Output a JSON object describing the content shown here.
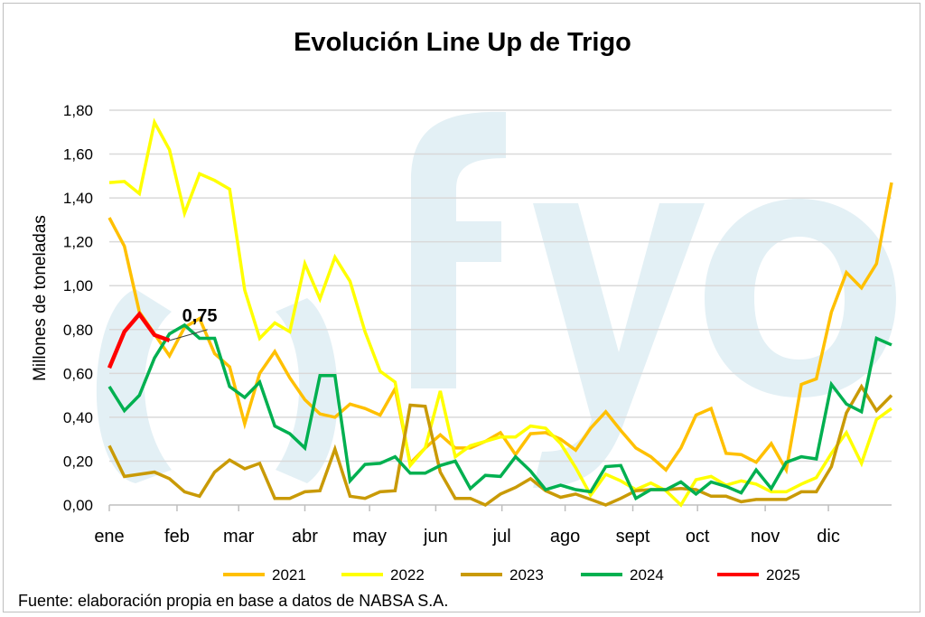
{
  "chart_data": {
    "type": "line",
    "title": "Evolución Line Up de Trigo",
    "ylabel": "Millones de toneladas",
    "xlabel": "",
    "ylim": [
      0,
      1.8
    ],
    "y_ticks": [
      "0,00",
      "0,20",
      "0,40",
      "0,60",
      "0,80",
      "1,00",
      "1,20",
      "1,40",
      "1,60",
      "1,80"
    ],
    "grid": "horizontal",
    "legend_position": "bottom",
    "x_unit": "week",
    "x_ticks": [
      {
        "label": "ene",
        "week": 1
      },
      {
        "label": "feb",
        "week": 5.5
      },
      {
        "label": "mar",
        "week": 9.6
      },
      {
        "label": "abr",
        "week": 14
      },
      {
        "label": "may",
        "week": 18.3
      },
      {
        "label": "jun",
        "week": 22.7
      },
      {
        "label": "jul",
        "week": 27.1
      },
      {
        "label": "ago",
        "week": 31.3
      },
      {
        "label": "sept",
        "week": 35.8
      },
      {
        "label": "oct",
        "week": 40.1
      },
      {
        "label": "nov",
        "week": 44.6
      },
      {
        "label": "dic",
        "week": 48.8
      }
    ],
    "series": [
      {
        "name": "2021",
        "color": "#FFC000",
        "values": [
          1.31,
          1.18,
          0.88,
          0.78,
          0.68,
          0.81,
          0.85,
          0.69,
          0.63,
          0.37,
          0.6,
          0.7,
          0.58,
          0.48,
          0.415,
          0.4,
          0.46,
          0.44,
          0.41,
          0.53,
          0.19,
          0.26,
          0.32,
          0.26,
          0.26,
          0.29,
          0.33,
          0.23,
          0.325,
          0.33,
          0.3,
          0.25,
          0.35,
          0.425,
          0.34,
          0.26,
          0.22,
          0.16,
          0.26,
          0.41,
          0.44,
          0.235,
          0.23,
          0.195,
          0.28,
          0.16,
          0.55,
          0.575,
          0.88,
          1.06,
          0.99,
          1.1,
          1.47
        ]
      },
      {
        "name": "2022",
        "color": "#FFFF00",
        "values": [
          1.47,
          1.475,
          1.42,
          1.745,
          1.62,
          1.33,
          1.51,
          1.48,
          1.44,
          0.98,
          0.76,
          0.83,
          0.79,
          1.1,
          0.94,
          1.13,
          1.02,
          0.79,
          0.61,
          0.56,
          0.18,
          0.26,
          0.52,
          0.22,
          0.27,
          0.29,
          0.31,
          0.31,
          0.36,
          0.35,
          0.28,
          0.17,
          0.045,
          0.14,
          0.11,
          0.07,
          0.1,
          0.065,
          0.0,
          0.115,
          0.13,
          0.09,
          0.11,
          0.095,
          0.06,
          0.06,
          0.095,
          0.125,
          0.235,
          0.33,
          0.19,
          0.39,
          0.44
        ]
      },
      {
        "name": "2023",
        "color": "#C99A06",
        "values": [
          0.27,
          0.13,
          0.14,
          0.15,
          0.12,
          0.06,
          0.04,
          0.15,
          0.205,
          0.165,
          0.19,
          0.03,
          0.03,
          0.06,
          0.065,
          0.255,
          0.04,
          0.03,
          0.06,
          0.065,
          0.455,
          0.45,
          0.15,
          0.03,
          0.03,
          0.0,
          0.05,
          0.08,
          0.12,
          0.065,
          0.035,
          0.05,
          0.025,
          0.0,
          0.03,
          0.065,
          0.07,
          0.07,
          0.075,
          0.07,
          0.04,
          0.04,
          0.015,
          0.025,
          0.025,
          0.025,
          0.06,
          0.06,
          0.175,
          0.42,
          0.54,
          0.43,
          0.5
        ]
      },
      {
        "name": "2024",
        "color": "#00B050",
        "values": [
          0.54,
          0.43,
          0.5,
          0.67,
          0.78,
          0.82,
          0.76,
          0.76,
          0.54,
          0.49,
          0.56,
          0.36,
          0.325,
          0.26,
          0.59,
          0.59,
          0.11,
          0.185,
          0.19,
          0.22,
          0.145,
          0.145,
          0.18,
          0.2,
          0.075,
          0.135,
          0.13,
          0.22,
          0.155,
          0.07,
          0.09,
          0.07,
          0.06,
          0.175,
          0.18,
          0.03,
          0.07,
          0.07,
          0.105,
          0.05,
          0.105,
          0.085,
          0.055,
          0.16,
          0.075,
          0.195,
          0.22,
          0.21,
          0.55,
          0.46,
          0.425,
          0.76,
          0.73
        ]
      },
      {
        "name": "2025",
        "color": "#FF0000",
        "values": [
          0.625,
          0.79,
          0.87,
          0.775,
          0.75
        ]
      }
    ],
    "annotations": [
      {
        "text": "0,75",
        "series": "2025",
        "week": 5
      }
    ]
  },
  "watermark": "fyo",
  "source": "Fuente: elaboración propia en base a datos de NABSA S.A."
}
